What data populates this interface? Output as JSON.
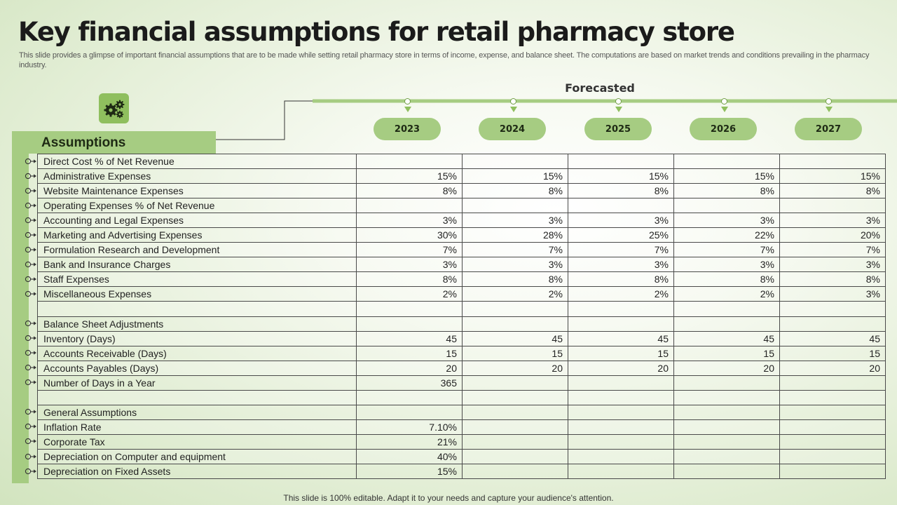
{
  "title": "Key financial assumptions for retail pharmacy store",
  "subtitle": "This slide provides a glimpse of important financial assumptions that are to be made while setting retail pharmacy store in terms of income, expense, and balance sheet. The computations are based on market trends and conditions prevailing in the pharmacy industry.",
  "gear_icon": "gears-icon",
  "assumptions_label": "Assumptions",
  "forecasted_label": "Forecasted",
  "years": [
    "2023",
    "2024",
    "2025",
    "2026",
    "2027"
  ],
  "rows": [
    {
      "label": "Direct Cost % of Net Revenue",
      "values": [
        "",
        "",
        "",
        "",
        ""
      ],
      "connector": true
    },
    {
      "label": "Administrative Expenses",
      "values": [
        "15%",
        "15%",
        "15%",
        "15%",
        "15%"
      ],
      "connector": true
    },
    {
      "label": "Website Maintenance Expenses",
      "values": [
        "8%",
        "8%",
        "8%",
        "8%",
        "8%"
      ],
      "connector": true
    },
    {
      "label": "Operating Expenses % of Net Revenue",
      "values": [
        "",
        "",
        "",
        "",
        ""
      ],
      "connector": true
    },
    {
      "label": "Accounting and Legal Expenses",
      "values": [
        "3%",
        "3%",
        "3%",
        "3%",
        "3%"
      ],
      "connector": true
    },
    {
      "label": "Marketing and Advertising Expenses",
      "values": [
        "30%",
        "28%",
        "25%",
        "22%",
        "20%"
      ],
      "connector": true
    },
    {
      "label": "Formulation Research and Development",
      "values": [
        "7%",
        "7%",
        "7%",
        "7%",
        "7%"
      ],
      "connector": true
    },
    {
      "label": "Bank and Insurance Charges",
      "values": [
        "3%",
        "3%",
        "3%",
        "3%",
        "3%"
      ],
      "connector": true
    },
    {
      "label": "Staff Expenses",
      "values": [
        "8%",
        "8%",
        "8%",
        "8%",
        "8%"
      ],
      "connector": true
    },
    {
      "label": "Miscellaneous Expenses",
      "values": [
        "2%",
        "2%",
        "2%",
        "2%",
        "3%"
      ],
      "connector": true
    },
    {
      "label": "",
      "values": [
        "",
        "",
        "",
        "",
        ""
      ],
      "connector": false
    },
    {
      "label": "Balance Sheet Adjustments",
      "values": [
        "",
        "",
        "",
        "",
        ""
      ],
      "connector": true
    },
    {
      "label": "Inventory (Days)",
      "values": [
        "45",
        "45",
        "45",
        "45",
        "45"
      ],
      "connector": true
    },
    {
      "label": "Accounts Receivable (Days)",
      "values": [
        "15",
        "15",
        "15",
        "15",
        "15"
      ],
      "connector": true
    },
    {
      "label": "Accounts Payables (Days)",
      "values": [
        "20",
        "20",
        "20",
        "20",
        "20"
      ],
      "connector": true
    },
    {
      "label": "Number of Days in a Year",
      "values": [
        "365",
        "",
        "",
        "",
        ""
      ],
      "connector": true
    },
    {
      "label": "",
      "values": [
        "",
        "",
        "",
        "",
        ""
      ],
      "connector": false
    },
    {
      "label": "General Assumptions",
      "values": [
        "",
        "",
        "",
        "",
        ""
      ],
      "connector": true
    },
    {
      "label": "Inflation Rate",
      "values": [
        "7.10%",
        "",
        "",
        "",
        ""
      ],
      "connector": true
    },
    {
      "label": "Corporate Tax",
      "values": [
        "21%",
        "",
        "",
        "",
        ""
      ],
      "connector": true
    },
    {
      "label": "Depreciation on Computer and equipment",
      "values": [
        "40%",
        "",
        "",
        "",
        ""
      ],
      "connector": true
    },
    {
      "label": "Depreciation on Fixed Assets",
      "values": [
        "15%",
        "",
        "",
        "",
        ""
      ],
      "connector": true
    }
  ],
  "footer": "This slide is 100% editable. Adapt it to your needs and capture your audience's attention.",
  "colors": {
    "accent": "#a6cc82",
    "accent_dark": "#8fbf5e",
    "border": "#4a4a4a"
  }
}
